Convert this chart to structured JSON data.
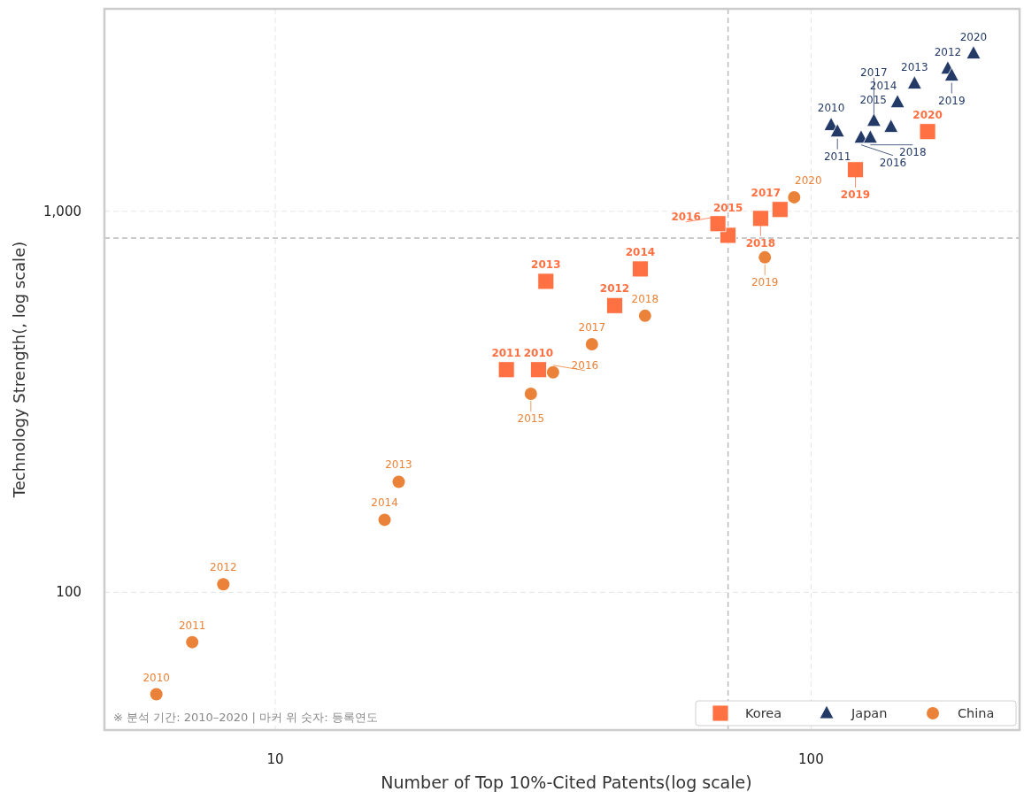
{
  "chart_data": {
    "type": "scatter",
    "xlabel": "Number of Top 10%-Cited Patents(log scale)",
    "ylabel": "Technology Strength(, log scale)",
    "log": "xy",
    "grid": true,
    "legend": "bottom right",
    "xlim": [
      4.8,
      245
    ],
    "ylim": [
      43.5,
      3400
    ],
    "xticks": [
      10,
      100
    ],
    "yticks": [
      100,
      {
        "value": 1000,
        "label": "1,000"
      }
    ],
    "ref_lines": [
      {
        "axis": "x",
        "value": 70,
        "color": "#bbbbbb",
        "line_style": "dashed"
      },
      {
        "axis": "y",
        "value": 851,
        "color": "#bbbbbb",
        "line_style": "dashed"
      }
    ],
    "annotations": [
      "※ 분석 기간: 2010–2020  |  마커 위 숫자: 등록연도",
      {
        "text": "2010",
        "x": 31,
        "y": 384
      },
      {
        "text": "2011",
        "x": 27,
        "y": 384
      },
      {
        "text": "2012",
        "x": 43,
        "y": 566
      },
      {
        "text": "2013",
        "x": 32,
        "y": 655
      },
      {
        "text": "2014",
        "x": 48,
        "y": 706
      },
      {
        "text": "2015",
        "x": 70,
        "y": 865
      },
      {
        "text": "2016",
        "x": 67,
        "y": 928
      },
      {
        "text": "2017",
        "x": 87.5,
        "y": 1011
      },
      {
        "text": "2018",
        "x": 80.5,
        "y": 958
      },
      {
        "text": "2019",
        "x": 121,
        "y": 1286
      },
      {
        "text": "2020",
        "x": 165,
        "y": 1619
      },
      {
        "text": "2010",
        "x": 109,
        "y": 1683
      },
      {
        "text": "2011",
        "x": 112,
        "y": 1619
      },
      {
        "text": "2012",
        "x": 180,
        "y": 2367
      },
      {
        "text": "2013",
        "x": 156,
        "y": 2163
      },
      {
        "text": "2014",
        "x": 145,
        "y": 1932
      },
      {
        "text": "2015",
        "x": 141,
        "y": 1664
      },
      {
        "text": "2016",
        "x": 124,
        "y": 1560
      },
      {
        "text": "2017",
        "x": 131,
        "y": 1726
      },
      {
        "text": "2018",
        "x": 129,
        "y": 1560
      },
      {
        "text": "2019",
        "x": 183,
        "y": 2270
      },
      {
        "text": "2020",
        "x": 201,
        "y": 2595
      },
      {
        "text": "2010",
        "x": 6,
        "y": 54
      },
      {
        "text": "2011",
        "x": 7,
        "y": 74
      },
      {
        "text": "2012",
        "x": 8,
        "y": 105
      },
      {
        "text": "2013",
        "x": 17,
        "y": 195
      },
      {
        "text": "2014",
        "x": 16,
        "y": 155
      },
      {
        "text": "2015",
        "x": 30,
        "y": 332
      },
      {
        "text": "2016",
        "x": 33,
        "y": 378
      },
      {
        "text": "2017",
        "x": 39,
        "y": 448
      },
      {
        "text": "2018",
        "x": 49,
        "y": 532
      },
      {
        "text": "2019",
        "x": 82,
        "y": 757
      },
      {
        "text": "2020",
        "x": 93,
        "y": 1089
      }
    ],
    "series": [
      {
        "name": "Korea",
        "color": "#ff7043",
        "marker": "square",
        "x": [
          31,
          27,
          43,
          32,
          48,
          70,
          67,
          87.5,
          80.5,
          121,
          165
        ],
        "values": [
          384,
          384,
          566,
          655,
          706,
          865,
          928,
          1011,
          958,
          1286,
          1619
        ]
      },
      {
        "name": "Japan",
        "color": "#243a66",
        "marker": "triangle",
        "x": [
          109,
          112,
          180,
          156,
          145,
          141,
          124,
          131,
          129,
          183,
          201
        ],
        "values": [
          1683,
          1619,
          2367,
          2163,
          1932,
          1664,
          1560,
          1726,
          1560,
          2270,
          2595
        ]
      },
      {
        "name": "China",
        "color": "#ea8339",
        "marker": "circle",
        "x": [
          6,
          7,
          8,
          17,
          16,
          30,
          33,
          39,
          49,
          82,
          93
        ],
        "values": [
          54,
          74,
          105,
          195,
          155,
          332,
          378,
          448,
          532,
          757,
          1089
        ]
      }
    ]
  }
}
